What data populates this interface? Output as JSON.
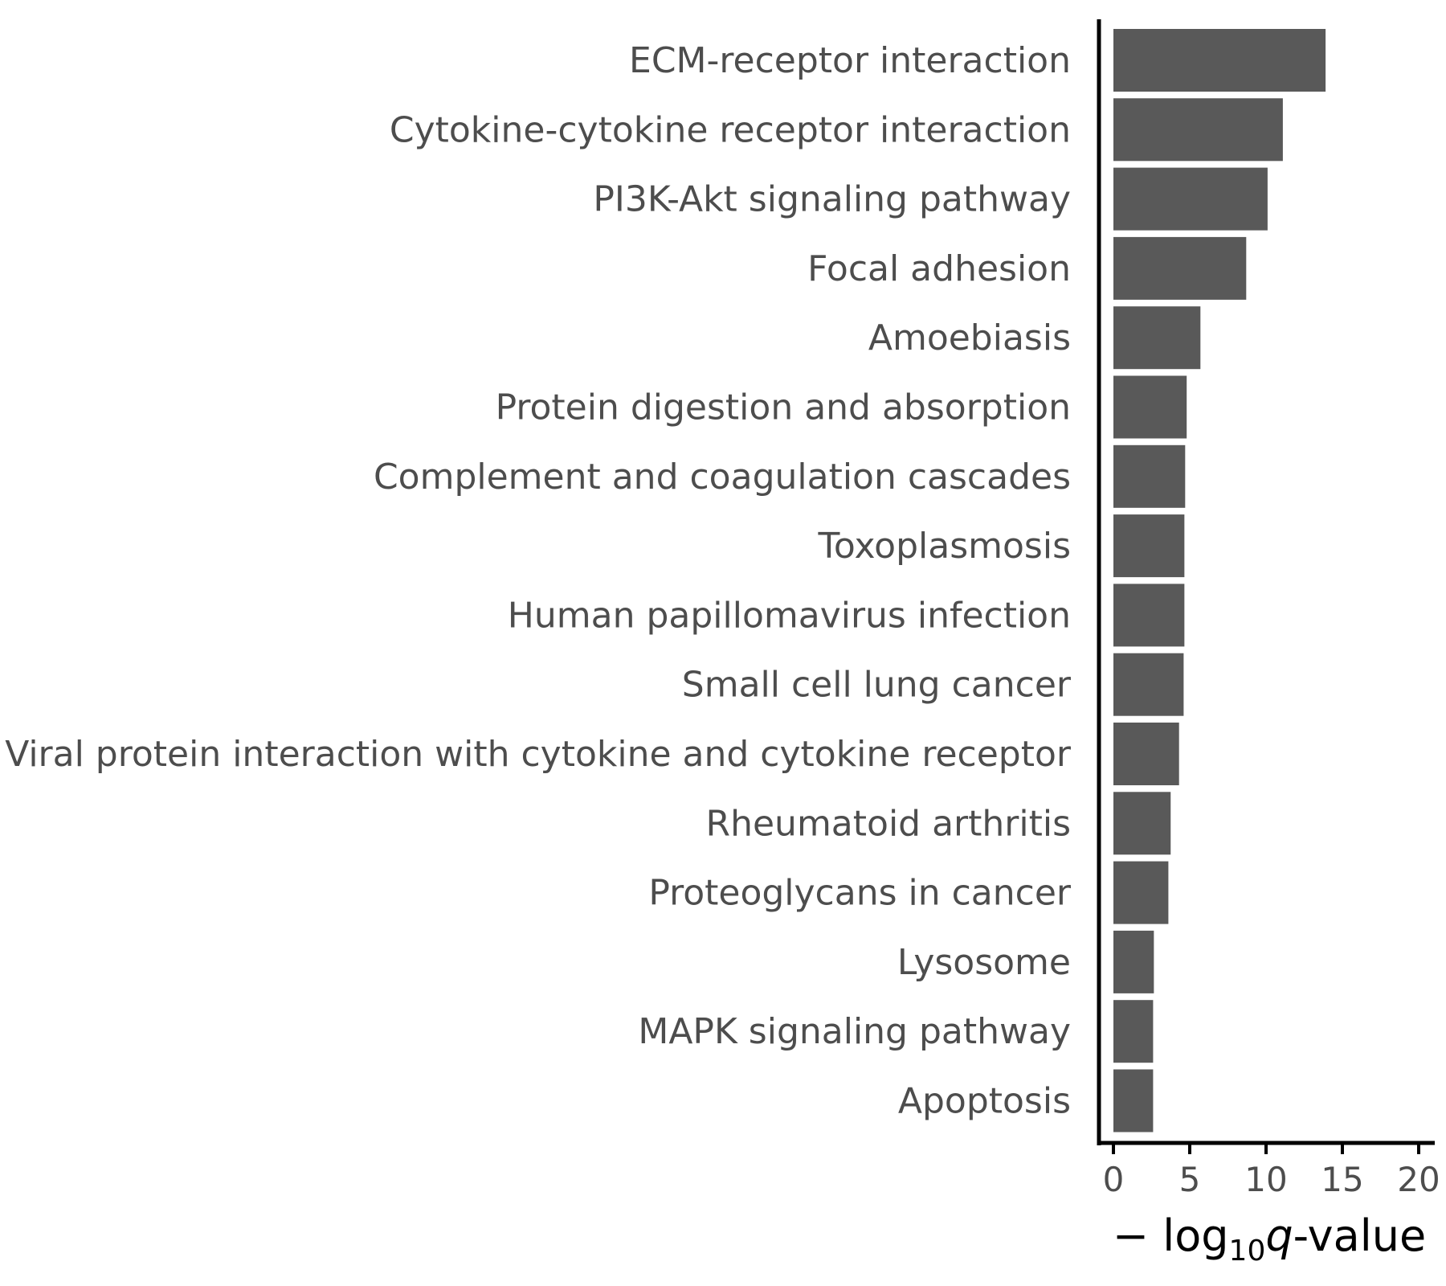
{
  "chart_data": {
    "type": "bar",
    "orientation": "horizontal",
    "categories": [
      "ECM-receptor interaction",
      "Cytokine-cytokine receptor interaction",
      "PI3K-Akt signaling pathway",
      "Focal adhesion",
      "Amoebiasis",
      "Protein digestion and absorption",
      "Complement and coagulation cascades",
      "Toxoplasmosis",
      "Human papillomavirus infection",
      "Small cell lung cancer",
      "Viral protein interaction with cytokine and cytokine receptor",
      "Rheumatoid arthritis",
      "Proteoglycans in cancer",
      "Lysosome",
      "MAPK signaling pathway",
      "Apoptosis"
    ],
    "values": [
      13.9,
      11.1,
      10.1,
      8.7,
      5.7,
      4.8,
      4.7,
      4.65,
      4.65,
      4.6,
      4.3,
      3.75,
      3.6,
      2.65,
      2.6,
      2.6
    ],
    "xlabel": {
      "prefix": "− log",
      "subscript": "10",
      "italic": "q",
      "suffix": "-value"
    },
    "ylabel": "",
    "xlim": [
      0,
      21
    ],
    "xticks": [
      "0",
      "5",
      "10",
      "15",
      "20"
    ],
    "grid": false,
    "bar_color": "#595959",
    "axis_color": "#000000",
    "label_color": "#4d4d4d"
  }
}
